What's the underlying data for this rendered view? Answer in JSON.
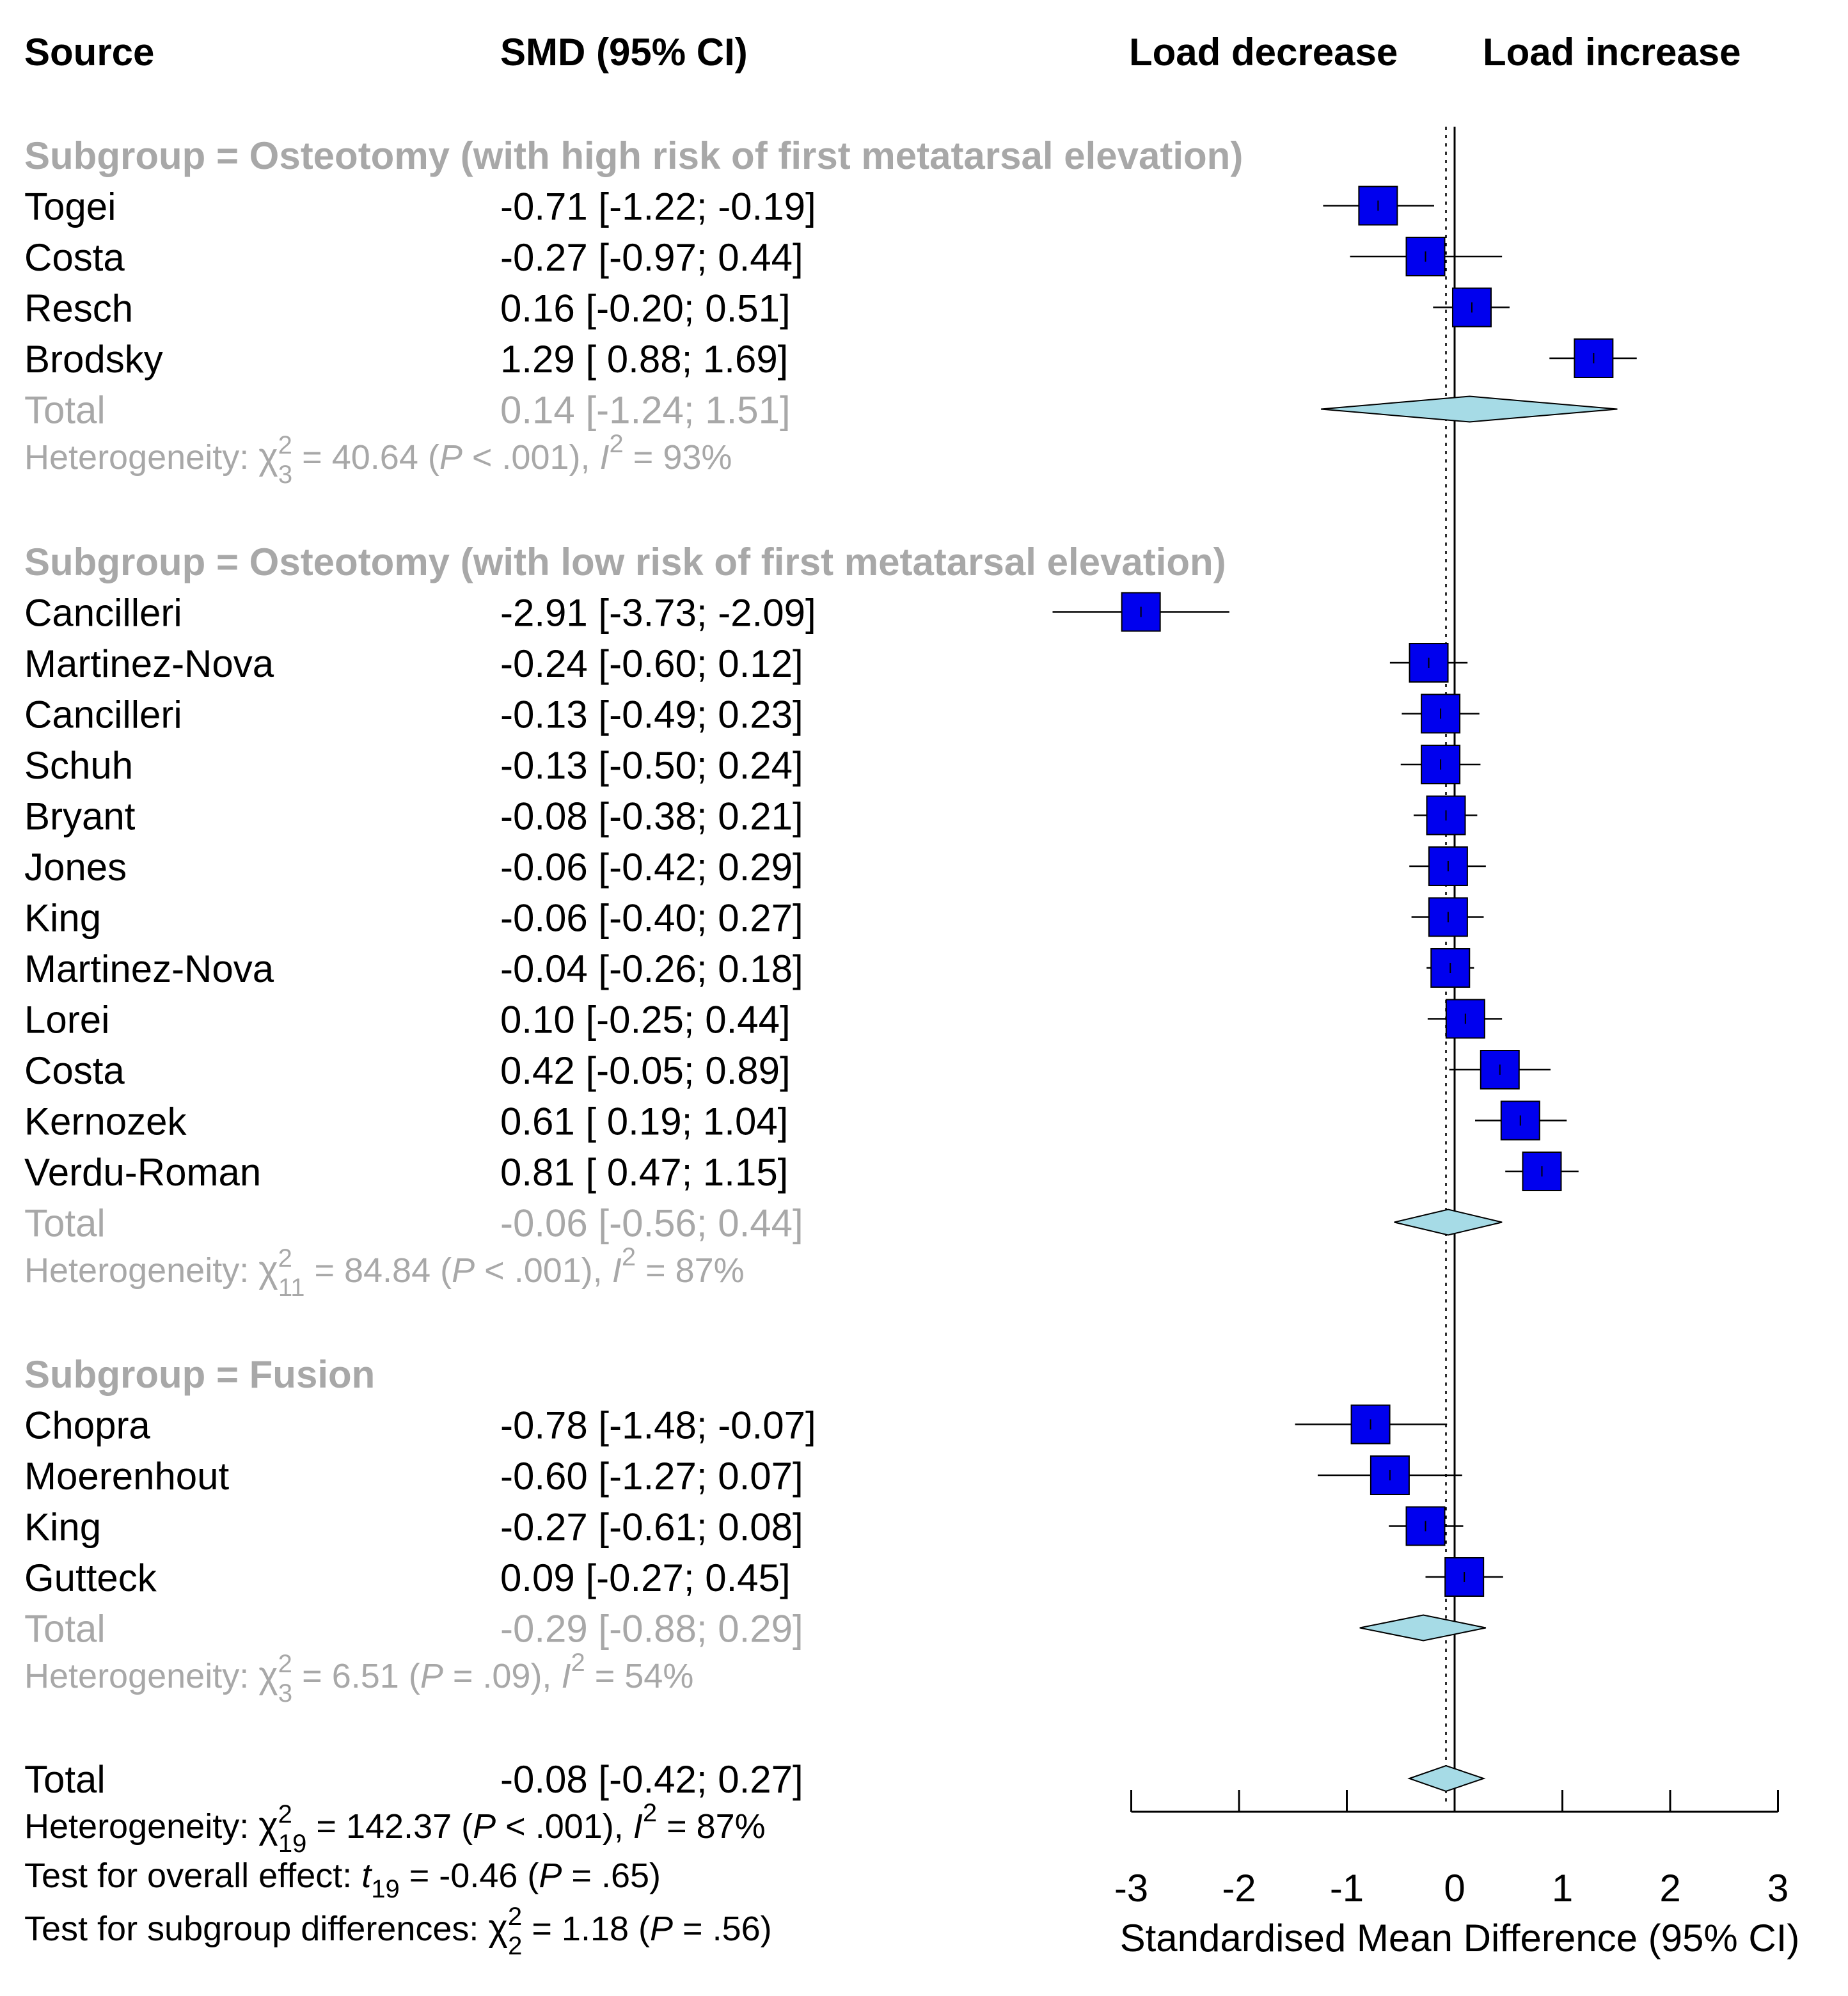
{
  "headers": {
    "source": "Source",
    "smd": "SMD (95% CI)",
    "left_direction": "Load decrease",
    "right_direction": "Load increase"
  },
  "subgroups": [
    {
      "title": "Subgroup = Osteotomy (with high risk of first metatarsal elevation)",
      "studies": [
        {
          "source": "Togei",
          "est": -0.71,
          "lo": -1.22,
          "hi": -0.19,
          "ci_text": "-0.71 [-1.22; -0.19]"
        },
        {
          "source": "Costa",
          "est": -0.27,
          "lo": -0.97,
          "hi": 0.44,
          "ci_text": "-0.27 [-0.97;  0.44]"
        },
        {
          "source": "Resch",
          "est": 0.16,
          "lo": -0.2,
          "hi": 0.51,
          "ci_text": "0.16 [-0.20;  0.51]"
        },
        {
          "source": "Brodsky",
          "est": 1.29,
          "lo": 0.88,
          "hi": 1.69,
          "ci_text": "1.29 [ 0.88;  1.69]"
        }
      ],
      "total": {
        "label": "Total",
        "est": 0.14,
        "lo": -1.24,
        "hi": 1.51,
        "ci_text": "0.14 [-1.24;  1.51]"
      },
      "heterogeneity": {
        "prefix": "Heterogeneity: ",
        "chi": "χ",
        "chi_sup": "2",
        "chi_sub": "3",
        "stat": " = 40.64 (",
        "p_sym": "P",
        "p_val": " < .001), ",
        "i_sym": "I",
        "i_sup": "2",
        "i_val": " = 93%"
      }
    },
    {
      "title": "Subgroup = Osteotomy (with low risk of first metatarsal elevation)",
      "studies": [
        {
          "source": "Cancilleri",
          "est": -2.91,
          "lo": -3.73,
          "hi": -2.09,
          "ci_text": "-2.91 [-3.73; -2.09]"
        },
        {
          "source": "Martinez-Nova",
          "est": -0.24,
          "lo": -0.6,
          "hi": 0.12,
          "ci_text": "-0.24 [-0.60;  0.12]"
        },
        {
          "source": "Cancilleri",
          "est": -0.13,
          "lo": -0.49,
          "hi": 0.23,
          "ci_text": "-0.13 [-0.49;  0.23]"
        },
        {
          "source": "Schuh",
          "est": -0.13,
          "lo": -0.5,
          "hi": 0.24,
          "ci_text": "-0.13 [-0.50;  0.24]"
        },
        {
          "source": "Bryant",
          "est": -0.08,
          "lo": -0.38,
          "hi": 0.21,
          "ci_text": "-0.08 [-0.38;  0.21]"
        },
        {
          "source": "Jones",
          "est": -0.06,
          "lo": -0.42,
          "hi": 0.29,
          "ci_text": "-0.06 [-0.42;  0.29]"
        },
        {
          "source": "King",
          "est": -0.06,
          "lo": -0.4,
          "hi": 0.27,
          "ci_text": "-0.06 [-0.40;  0.27]"
        },
        {
          "source": "Martinez-Nova",
          "est": -0.04,
          "lo": -0.26,
          "hi": 0.18,
          "ci_text": "-0.04 [-0.26;  0.18]"
        },
        {
          "source": "Lorei",
          "est": 0.1,
          "lo": -0.25,
          "hi": 0.44,
          "ci_text": "0.10 [-0.25;  0.44]"
        },
        {
          "source": "Costa",
          "est": 0.42,
          "lo": -0.05,
          "hi": 0.89,
          "ci_text": "0.42 [-0.05;  0.89]"
        },
        {
          "source": "Kernozek",
          "est": 0.61,
          "lo": 0.19,
          "hi": 1.04,
          "ci_text": "0.61 [ 0.19;  1.04]"
        },
        {
          "source": "Verdu-Roman",
          "est": 0.81,
          "lo": 0.47,
          "hi": 1.15,
          "ci_text": "0.81 [ 0.47;  1.15]"
        }
      ],
      "total": {
        "label": "Total",
        "est": -0.06,
        "lo": -0.56,
        "hi": 0.44,
        "ci_text": "-0.06 [-0.56;  0.44]"
      },
      "heterogeneity": {
        "prefix": "Heterogeneity: ",
        "chi": "χ",
        "chi_sup": "2",
        "chi_sub": "11",
        "stat": " = 84.84 (",
        "p_sym": "P",
        "p_val": " < .001), ",
        "i_sym": "I",
        "i_sup": "2",
        "i_val": " = 87%"
      }
    },
    {
      "title": "Subgroup = Fusion",
      "studies": [
        {
          "source": "Chopra",
          "est": -0.78,
          "lo": -1.48,
          "hi": -0.07,
          "ci_text": "-0.78 [-1.48; -0.07]"
        },
        {
          "source": "Moerenhout",
          "est": -0.6,
          "lo": -1.27,
          "hi": 0.07,
          "ci_text": "-0.60 [-1.27;  0.07]"
        },
        {
          "source": "King",
          "est": -0.27,
          "lo": -0.61,
          "hi": 0.08,
          "ci_text": "-0.27 [-0.61;  0.08]"
        },
        {
          "source": "Gutteck",
          "est": 0.09,
          "lo": -0.27,
          "hi": 0.45,
          "ci_text": "0.09 [-0.27;  0.45]"
        }
      ],
      "total": {
        "label": "Total",
        "est": -0.29,
        "lo": -0.88,
        "hi": 0.29,
        "ci_text": "-0.29 [-0.88;  0.29]"
      },
      "heterogeneity": {
        "prefix": "Heterogeneity: ",
        "chi": "χ",
        "chi_sup": "2",
        "chi_sub": "3",
        "stat": " = 6.51 (",
        "p_sym": "P",
        "p_val": " = .09), ",
        "i_sym": "I",
        "i_sup": "2",
        "i_val": " = 54%"
      }
    }
  ],
  "overall": {
    "total": {
      "label": "Total",
      "est": -0.08,
      "lo": -0.42,
      "hi": 0.27,
      "ci_text": "-0.08 [-0.42;  0.27]"
    },
    "heterogeneity": {
      "prefix": "Heterogeneity: ",
      "chi": "χ",
      "chi_sup": "2",
      "chi_sub": "19",
      "stat": " = 142.37 (",
      "p_sym": "P",
      "p_val": " < .001), ",
      "i_sym": "I",
      "i_sup": "2",
      "i_val": " = 87%"
    },
    "overall_effect": {
      "prefix": "Test for overall effect: ",
      "t": "t",
      "t_sub": "19",
      "stat": " = -0.46 (",
      "p_sym": "P",
      "p_val": " = .65)"
    },
    "subgroup_diff": {
      "prefix": "Test for subgroup differences: ",
      "chi": "χ",
      "chi_sup": "2",
      "chi_sub": "2",
      "stat": " = 1.18 (",
      "p_sym": "P",
      "p_val": " = .56)"
    }
  },
  "axis": {
    "ticks": [
      -3,
      -2,
      -1,
      0,
      1,
      2,
      3
    ],
    "tick_labels": [
      "-3",
      "-2",
      "-1",
      "0",
      "1",
      "2",
      "3"
    ],
    "xlabel": "Standardised Mean Difference (95% CI)",
    "xlim": [
      -3,
      3
    ],
    "reference_line": 0,
    "pooled_dotted_line": -0.08
  },
  "colors": {
    "study_box": "#0000ee",
    "diamond": "#a6dbe6",
    "subgroup_text": "#a8a8a8"
  },
  "chart_data": {
    "type": "forest",
    "xlabel": "Standardised Mean Difference (95% CI)",
    "xlim": [
      -3,
      3
    ],
    "series": [
      {
        "name": "Subgroup = Osteotomy (with high risk of first metatarsal elevation)",
        "x": [
          -0.71,
          -0.27,
          0.16,
          1.29
        ],
        "lower": [
          -1.22,
          -0.97,
          -0.2,
          0.88
        ],
        "upper": [
          -0.19,
          0.44,
          0.51,
          1.69
        ],
        "pooled": [
          0.14,
          -1.24,
          1.51
        ]
      },
      {
        "name": "Subgroup = Osteotomy (with low risk of first metatarsal elevation)",
        "x": [
          -2.91,
          -0.24,
          -0.13,
          -0.13,
          -0.08,
          -0.06,
          -0.06,
          -0.04,
          0.1,
          0.42,
          0.61,
          0.81
        ],
        "lower": [
          -3.73,
          -0.6,
          -0.49,
          -0.5,
          -0.38,
          -0.42,
          -0.4,
          -0.26,
          -0.25,
          -0.05,
          0.19,
          0.47
        ],
        "upper": [
          -2.09,
          0.12,
          0.23,
          0.24,
          0.21,
          0.29,
          0.27,
          0.18,
          0.44,
          0.89,
          1.04,
          1.15
        ],
        "pooled": [
          -0.06,
          -0.56,
          0.44
        ]
      },
      {
        "name": "Subgroup = Fusion",
        "x": [
          -0.78,
          -0.6,
          -0.27,
          0.09
        ],
        "lower": [
          -1.48,
          -1.27,
          -0.61,
          -0.27
        ],
        "upper": [
          -0.07,
          0.07,
          0.08,
          0.45
        ],
        "pooled": [
          -0.29,
          -0.88,
          0.29
        ]
      }
    ],
    "overall_pooled": [
      -0.08,
      -0.42,
      0.27
    ]
  }
}
